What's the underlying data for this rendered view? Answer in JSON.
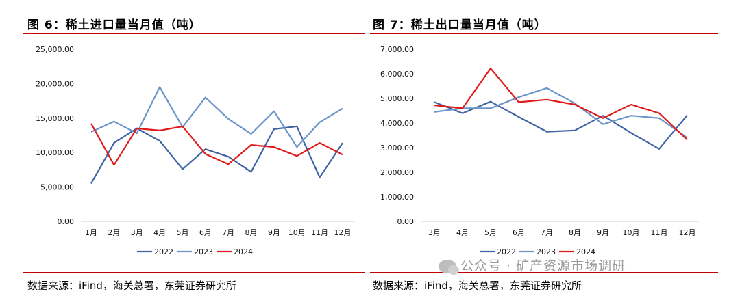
{
  "figures": [
    {
      "title": "图 6：稀土进口量当月值（吨）",
      "source": "数据来源：iFind，海关总署，东莞证券研究所"
    },
    {
      "title": "图 7：稀土出口量当月值（吨）",
      "source": "数据来源：iFind，海关总署，东莞证券研究所"
    }
  ],
  "watermark": "公众号 · 矿产资源市场调研",
  "colors": {
    "rule": "#c00000",
    "s2022": "#3f63a3",
    "s2023": "#6b95c9",
    "s2024": "#e01b1b"
  },
  "chart_data": [
    {
      "type": "line",
      "categories": [
        "1月",
        "2月",
        "3月",
        "4月",
        "5月",
        "6月",
        "7月",
        "8月",
        "9月",
        "10月",
        "11月",
        "12月"
      ],
      "yticks": [
        "0.00",
        "5,000.00",
        "10,000.00",
        "15,000.00",
        "20,000.00",
        "25,000.00"
      ],
      "ylim": [
        0,
        25000
      ],
      "grid": false,
      "legend": "bottom",
      "series": [
        {
          "name": "2022",
          "color": "#3f63a3",
          "values": [
            5500,
            11400,
            13500,
            11700,
            7600,
            10500,
            9400,
            7200,
            13400,
            13800,
            6400,
            11400
          ]
        },
        {
          "name": "2023",
          "color": "#6b95c9",
          "values": [
            13000,
            14500,
            12800,
            19500,
            13700,
            18000,
            14900,
            12700,
            16000,
            10800,
            14400,
            16400
          ]
        },
        {
          "name": "2024",
          "color": "#e01b1b",
          "values": [
            14200,
            8200,
            13500,
            13200,
            13800,
            9800,
            8300,
            11100,
            10800,
            9500,
            11400,
            9700
          ]
        }
      ]
    },
    {
      "type": "line",
      "categories": [
        "3月",
        "4月",
        "5月",
        "6月",
        "7月",
        "8月",
        "9月",
        "10月",
        "11月",
        "12月"
      ],
      "yticks": [
        "0.00",
        "1,000.00",
        "2,000.00",
        "3,000.00",
        "4,000.00",
        "5,000.00",
        "6,000.00",
        "7,000.00"
      ],
      "ylim": [
        0,
        7000
      ],
      "grid": false,
      "legend": "bottom",
      "series": [
        {
          "name": "2022",
          "color": "#3f63a3",
          "values": [
            4850,
            4400,
            4870,
            4250,
            3650,
            3700,
            4300,
            3600,
            2950,
            4320
          ]
        },
        {
          "name": "2023",
          "color": "#6b95c9",
          "values": [
            4450,
            4600,
            4600,
            5050,
            5420,
            4800,
            3950,
            4300,
            4200,
            3400
          ]
        },
        {
          "name": "2024",
          "color": "#e01b1b",
          "values": [
            4720,
            4600,
            6220,
            4850,
            4950,
            4750,
            4200,
            4750,
            4400,
            3320
          ]
        }
      ]
    }
  ]
}
